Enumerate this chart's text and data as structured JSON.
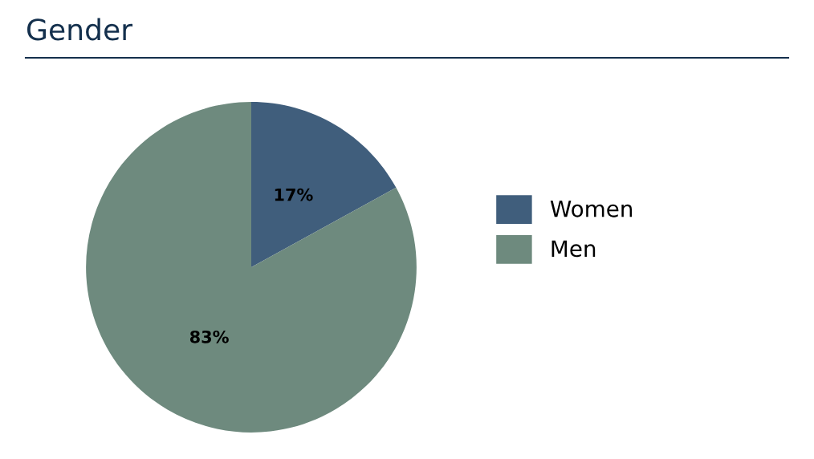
{
  "chart_data": {
    "type": "pie",
    "title": "Gender",
    "categories": [
      "Women",
      "Men"
    ],
    "values": [
      17,
      83
    ],
    "value_labels": [
      "17%",
      "83%"
    ],
    "colors": [
      "#405e7c",
      "#6e8a7e"
    ],
    "legend": "right"
  }
}
